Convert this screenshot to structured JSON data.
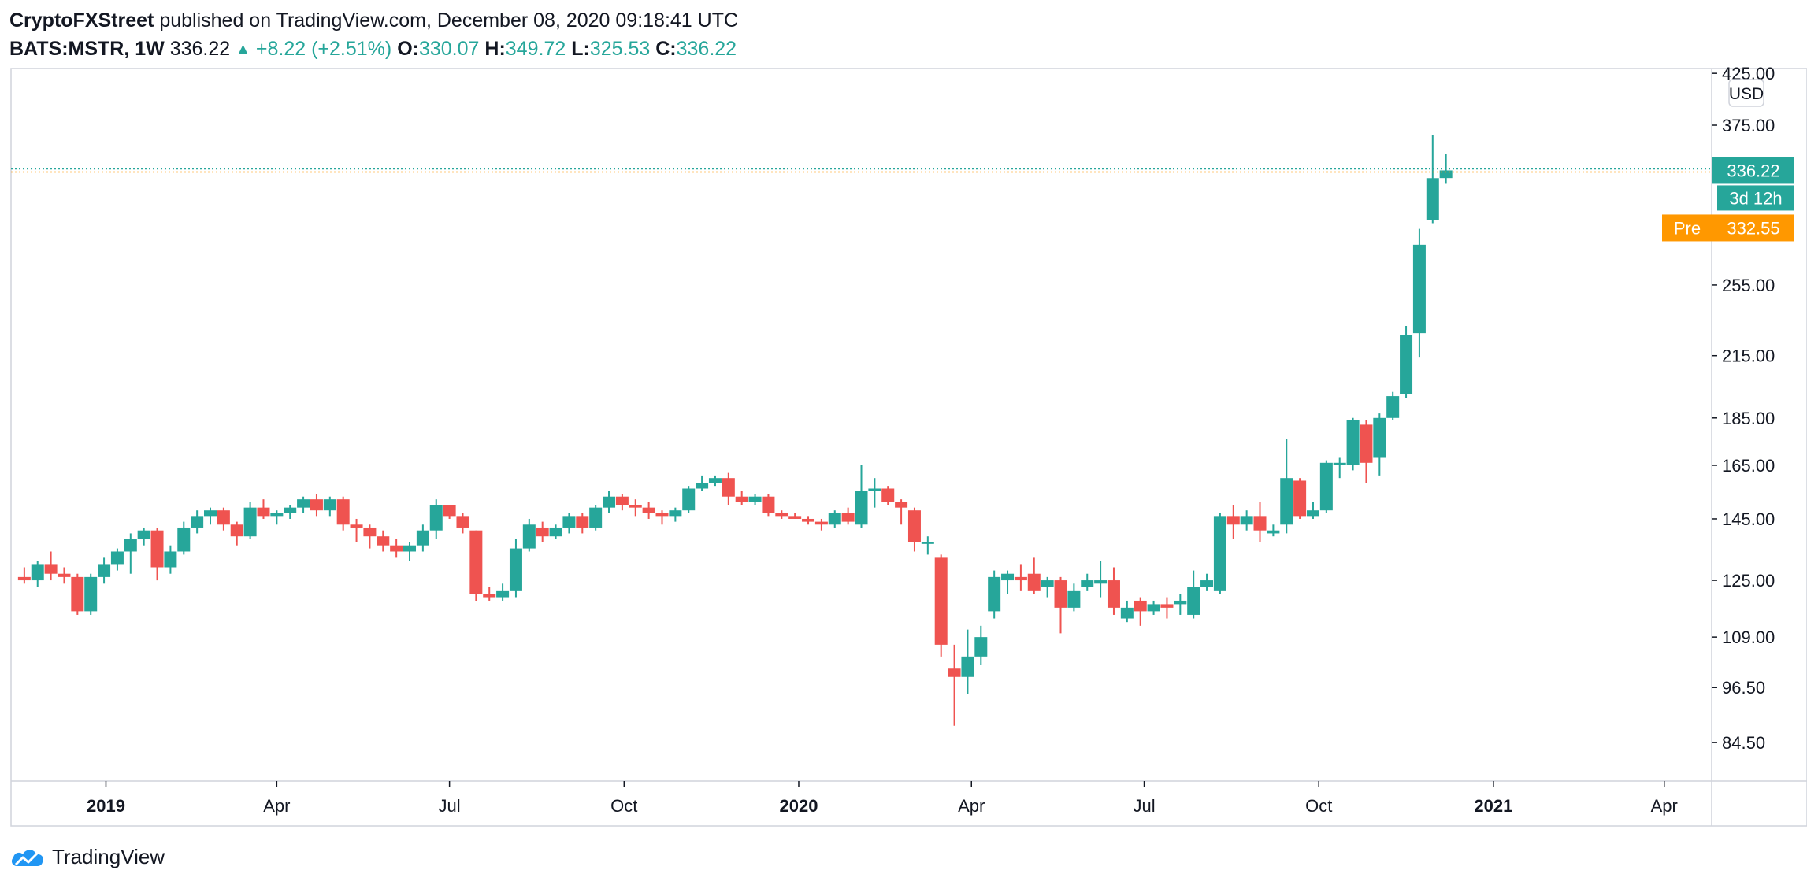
{
  "header": {
    "author": "CryptoFXStreet",
    "published": "published on TradingView.com, December 08, 2020 09:18:41 UTC",
    "symbol": "BATS:MSTR, 1W",
    "last": "336.22",
    "change": "+8.22 (+2.51%)",
    "o_label": "O:",
    "o_value": "330.07",
    "h_label": "H:",
    "h_value": "349.72",
    "l_label": "L:",
    "l_value": "325.53",
    "c_label": "C:",
    "c_value": "336.22"
  },
  "colors": {
    "up": "#26a69a",
    "down": "#ef5350",
    "pre": "#ff9800",
    "grid_border": "#d1d4dc",
    "text": "#131722",
    "brand_blue": "#2196f3"
  },
  "price_axis": {
    "currency": "USD",
    "last_label": "336.22",
    "countdown": "3d 12h",
    "pre_tag": "Pre",
    "pre_label": "332.55"
  },
  "footer": {
    "brand": "TradingView",
    "logo_icon": "tradingview-cloud-icon"
  },
  "chart_data": {
    "type": "candlestick",
    "interval": "1W",
    "scale": "log",
    "grid": false,
    "y_ticks": [
      "425.00",
      "375.00",
      "255.00",
      "215.00",
      "185.00",
      "165.00",
      "145.00",
      "125.00",
      "109.00",
      "96.50",
      "84.50"
    ],
    "x_ticks": [
      {
        "label": "2019",
        "date": "2019-01-01",
        "bold": true
      },
      {
        "label": "Apr",
        "date": "2019-04-01"
      },
      {
        "label": "Jul",
        "date": "2019-07-01"
      },
      {
        "label": "Oct",
        "date": "2019-10-01"
      },
      {
        "label": "2020",
        "date": "2020-01-01",
        "bold": true
      },
      {
        "label": "Apr",
        "date": "2020-04-01"
      },
      {
        "label": "Jul",
        "date": "2020-07-01"
      },
      {
        "label": "Oct",
        "date": "2020-10-01"
      },
      {
        "label": "2021",
        "date": "2021-01-01",
        "bold": true
      },
      {
        "label": "Apr",
        "date": "2021-04-01"
      }
    ],
    "x_range": [
      "2018-11-12",
      "2021-04-26"
    ],
    "y_range": [
      77,
      430
    ],
    "last_price": 336.22,
    "pre_price": 332.55,
    "candles": [
      {
        "date": "2018-11-19",
        "o": 126,
        "h": 129,
        "l": 124,
        "c": 125
      },
      {
        "date": "2018-11-26",
        "o": 125,
        "h": 131,
        "l": 123,
        "c": 130
      },
      {
        "date": "2018-12-03",
        "o": 130,
        "h": 134,
        "l": 125,
        "c": 127
      },
      {
        "date": "2018-12-10",
        "o": 127,
        "h": 129,
        "l": 124,
        "c": 126
      },
      {
        "date": "2018-12-17",
        "o": 126,
        "h": 127,
        "l": 115,
        "c": 116
      },
      {
        "date": "2018-12-24",
        "o": 116,
        "h": 127,
        "l": 115,
        "c": 126
      },
      {
        "date": "2018-12-31",
        "o": 126,
        "h": 132,
        "l": 124,
        "c": 130
      },
      {
        "date": "2019-01-07",
        "o": 130,
        "h": 135,
        "l": 128,
        "c": 134
      },
      {
        "date": "2019-01-14",
        "o": 134,
        "h": 140,
        "l": 127,
        "c": 138
      },
      {
        "date": "2019-01-21",
        "o": 138,
        "h": 142,
        "l": 136,
        "c": 141
      },
      {
        "date": "2019-01-28",
        "o": 141,
        "h": 142,
        "l": 125,
        "c": 129
      },
      {
        "date": "2019-02-04",
        "o": 129,
        "h": 136,
        "l": 127,
        "c": 134
      },
      {
        "date": "2019-02-11",
        "o": 134,
        "h": 144,
        "l": 133,
        "c": 142
      },
      {
        "date": "2019-02-18",
        "o": 142,
        "h": 148,
        "l": 140,
        "c": 146
      },
      {
        "date": "2019-02-25",
        "o": 146,
        "h": 149,
        "l": 143,
        "c": 148
      },
      {
        "date": "2019-03-04",
        "o": 148,
        "h": 149,
        "l": 141,
        "c": 143
      },
      {
        "date": "2019-03-11",
        "o": 143,
        "h": 144,
        "l": 136,
        "c": 139
      },
      {
        "date": "2019-03-18",
        "o": 139,
        "h": 151,
        "l": 138,
        "c": 149
      },
      {
        "date": "2019-03-25",
        "o": 149,
        "h": 152,
        "l": 145,
        "c": 146
      },
      {
        "date": "2019-04-01",
        "o": 146,
        "h": 148,
        "l": 143,
        "c": 147
      },
      {
        "date": "2019-04-08",
        "o": 147,
        "h": 150,
        "l": 145,
        "c": 149
      },
      {
        "date": "2019-04-15",
        "o": 149,
        "h": 153,
        "l": 147,
        "c": 152
      },
      {
        "date": "2019-04-22",
        "o": 152,
        "h": 154,
        "l": 146,
        "c": 148
      },
      {
        "date": "2019-04-29",
        "o": 148,
        "h": 153,
        "l": 146,
        "c": 152
      },
      {
        "date": "2019-05-06",
        "o": 152,
        "h": 153,
        "l": 141,
        "c": 143
      },
      {
        "date": "2019-05-13",
        "o": 143,
        "h": 145,
        "l": 137,
        "c": 142
      },
      {
        "date": "2019-05-20",
        "o": 142,
        "h": 143,
        "l": 135,
        "c": 139
      },
      {
        "date": "2019-05-27",
        "o": 139,
        "h": 141,
        "l": 134,
        "c": 136
      },
      {
        "date": "2019-06-03",
        "o": 136,
        "h": 138,
        "l": 132,
        "c": 134
      },
      {
        "date": "2019-06-10",
        "o": 134,
        "h": 137,
        "l": 131,
        "c": 136
      },
      {
        "date": "2019-06-17",
        "o": 136,
        "h": 143,
        "l": 134,
        "c": 141
      },
      {
        "date": "2019-06-24",
        "o": 141,
        "h": 152,
        "l": 138,
        "c": 150
      },
      {
        "date": "2019-07-01",
        "o": 150,
        "h": 150,
        "l": 145,
        "c": 146
      },
      {
        "date": "2019-07-08",
        "o": 146,
        "h": 147,
        "l": 140,
        "c": 142
      },
      {
        "date": "2019-07-15",
        "o": 141,
        "h": 141,
        "l": 119,
        "c": 121
      },
      {
        "date": "2019-07-22",
        "o": 121,
        "h": 123,
        "l": 119,
        "c": 120
      },
      {
        "date": "2019-07-29",
        "o": 120,
        "h": 124,
        "l": 119,
        "c": 122
      },
      {
        "date": "2019-08-05",
        "o": 122,
        "h": 138,
        "l": 120,
        "c": 135
      },
      {
        "date": "2019-08-12",
        "o": 135,
        "h": 145,
        "l": 134,
        "c": 143
      },
      {
        "date": "2019-08-19",
        "o": 142,
        "h": 144,
        "l": 137,
        "c": 139
      },
      {
        "date": "2019-08-26",
        "o": 139,
        "h": 143,
        "l": 138,
        "c": 142
      },
      {
        "date": "2019-09-02",
        "o": 142,
        "h": 147,
        "l": 140,
        "c": 146
      },
      {
        "date": "2019-09-09",
        "o": 146,
        "h": 147,
        "l": 140,
        "c": 142
      },
      {
        "date": "2019-09-16",
        "o": 142,
        "h": 150,
        "l": 141,
        "c": 149
      },
      {
        "date": "2019-09-23",
        "o": 149,
        "h": 155,
        "l": 147,
        "c": 153
      },
      {
        "date": "2019-09-30",
        "o": 153,
        "h": 154,
        "l": 148,
        "c": 150
      },
      {
        "date": "2019-10-07",
        "o": 150,
        "h": 152,
        "l": 146,
        "c": 149
      },
      {
        "date": "2019-10-14",
        "o": 149,
        "h": 151,
        "l": 145,
        "c": 147
      },
      {
        "date": "2019-10-21",
        "o": 147,
        "h": 148,
        "l": 143,
        "c": 146
      },
      {
        "date": "2019-10-28",
        "o": 146,
        "h": 149,
        "l": 144,
        "c": 148
      },
      {
        "date": "2019-11-04",
        "o": 148,
        "h": 157,
        "l": 147,
        "c": 156
      },
      {
        "date": "2019-11-11",
        "o": 156,
        "h": 161,
        "l": 155,
        "c": 158
      },
      {
        "date": "2019-11-18",
        "o": 158,
        "h": 161,
        "l": 157,
        "c": 160
      },
      {
        "date": "2019-11-25",
        "o": 160,
        "h": 162,
        "l": 150,
        "c": 153
      },
      {
        "date": "2019-12-02",
        "o": 153,
        "h": 155,
        "l": 150,
        "c": 151
      },
      {
        "date": "2019-12-09",
        "o": 151,
        "h": 154,
        "l": 150,
        "c": 153
      },
      {
        "date": "2019-12-16",
        "o": 153,
        "h": 154,
        "l": 146,
        "c": 147
      },
      {
        "date": "2019-12-23",
        "o": 147,
        "h": 148,
        "l": 145,
        "c": 146
      },
      {
        "date": "2019-12-30",
        "o": 146,
        "h": 147,
        "l": 145,
        "c": 145
      },
      {
        "date": "2020-01-06",
        "o": 145,
        "h": 146,
        "l": 143,
        "c": 144
      },
      {
        "date": "2020-01-13",
        "o": 144,
        "h": 145,
        "l": 141,
        "c": 143
      },
      {
        "date": "2020-01-20",
        "o": 143,
        "h": 148,
        "l": 142,
        "c": 147
      },
      {
        "date": "2020-01-27",
        "o": 147,
        "h": 149,
        "l": 143,
        "c": 144
      },
      {
        "date": "2020-02-03",
        "o": 143,
        "h": 165,
        "l": 142,
        "c": 155
      },
      {
        "date": "2020-02-10",
        "o": 155,
        "h": 160,
        "l": 149,
        "c": 156
      },
      {
        "date": "2020-02-17",
        "o": 156,
        "h": 157,
        "l": 150,
        "c": 151
      },
      {
        "date": "2020-02-24",
        "o": 151,
        "h": 152,
        "l": 143,
        "c": 149
      },
      {
        "date": "2020-03-02",
        "o": 148,
        "h": 149,
        "l": 134,
        "c": 137
      },
      {
        "date": "2020-03-09",
        "o": 137,
        "h": 139,
        "l": 133,
        "c": 137
      },
      {
        "date": "2020-03-16",
        "o": 132,
        "h": 133,
        "l": 104,
        "c": 107
      },
      {
        "date": "2020-03-23",
        "o": 101,
        "h": 107,
        "l": 88,
        "c": 99
      },
      {
        "date": "2020-03-30",
        "o": 99,
        "h": 111,
        "l": 95,
        "c": 104
      },
      {
        "date": "2020-04-06",
        "o": 104,
        "h": 112,
        "l": 102,
        "c": 109
      },
      {
        "date": "2020-04-13",
        "o": 116,
        "h": 128,
        "l": 114,
        "c": 126
      },
      {
        "date": "2020-04-20",
        "o": 125,
        "h": 128,
        "l": 121,
        "c": 127
      },
      {
        "date": "2020-04-27",
        "o": 126,
        "h": 130,
        "l": 122,
        "c": 125
      },
      {
        "date": "2020-05-04",
        "o": 127,
        "h": 132,
        "l": 121,
        "c": 122
      },
      {
        "date": "2020-05-11",
        "o": 123,
        "h": 126,
        "l": 120,
        "c": 125
      },
      {
        "date": "2020-05-18",
        "o": 125,
        "h": 126,
        "l": 110,
        "c": 117
      },
      {
        "date": "2020-05-25",
        "o": 117,
        "h": 124,
        "l": 116,
        "c": 122
      },
      {
        "date": "2020-06-01",
        "o": 123,
        "h": 127,
        "l": 122,
        "c": 125
      },
      {
        "date": "2020-06-08",
        "o": 124,
        "h": 131,
        "l": 120,
        "c": 125
      },
      {
        "date": "2020-06-15",
        "o": 125,
        "h": 129,
        "l": 115,
        "c": 117
      },
      {
        "date": "2020-06-22",
        "o": 114,
        "h": 119,
        "l": 113,
        "c": 117
      },
      {
        "date": "2020-06-29",
        "o": 119,
        "h": 120,
        "l": 112,
        "c": 116
      },
      {
        "date": "2020-07-06",
        "o": 116,
        "h": 119,
        "l": 115,
        "c": 118
      },
      {
        "date": "2020-07-13",
        "o": 118,
        "h": 120,
        "l": 114,
        "c": 117
      },
      {
        "date": "2020-07-20",
        "o": 118,
        "h": 121,
        "l": 115,
        "c": 119
      },
      {
        "date": "2020-07-27",
        "o": 115,
        "h": 128,
        "l": 114,
        "c": 123
      },
      {
        "date": "2020-08-03",
        "o": 123,
        "h": 127,
        "l": 122,
        "c": 125
      },
      {
        "date": "2020-08-10",
        "o": 122,
        "h": 147,
        "l": 121,
        "c": 146
      },
      {
        "date": "2020-08-17",
        "o": 146,
        "h": 150,
        "l": 138,
        "c": 143
      },
      {
        "date": "2020-08-24",
        "o": 143,
        "h": 148,
        "l": 141,
        "c": 146
      },
      {
        "date": "2020-08-31",
        "o": 146,
        "h": 151,
        "l": 137,
        "c": 141
      },
      {
        "date": "2020-09-07",
        "o": 140,
        "h": 143,
        "l": 139,
        "c": 141
      },
      {
        "date": "2020-09-14",
        "o": 143,
        "h": 176,
        "l": 140,
        "c": 160
      },
      {
        "date": "2020-09-21",
        "o": 159,
        "h": 160,
        "l": 145,
        "c": 146
      },
      {
        "date": "2020-09-28",
        "o": 146,
        "h": 151,
        "l": 145,
        "c": 148
      },
      {
        "date": "2020-10-05",
        "o": 148,
        "h": 167,
        "l": 147,
        "c": 166
      },
      {
        "date": "2020-10-12",
        "o": 165,
        "h": 168,
        "l": 160,
        "c": 166
      },
      {
        "date": "2020-10-19",
        "o": 165,
        "h": 185,
        "l": 163,
        "c": 184
      },
      {
        "date": "2020-10-26",
        "o": 182,
        "h": 184,
        "l": 158,
        "c": 166
      },
      {
        "date": "2020-11-02",
        "o": 168,
        "h": 187,
        "l": 161,
        "c": 185
      },
      {
        "date": "2020-11-09",
        "o": 185,
        "h": 197,
        "l": 184,
        "c": 195
      },
      {
        "date": "2020-11-16",
        "o": 196,
        "h": 231,
        "l": 194,
        "c": 226
      },
      {
        "date": "2020-11-23",
        "o": 227,
        "h": 292,
        "l": 214,
        "c": 281
      },
      {
        "date": "2020-11-30",
        "o": 298,
        "h": 366,
        "l": 296,
        "c": 330
      },
      {
        "date": "2020-12-07",
        "o": 330.07,
        "h": 349.72,
        "l": 325.53,
        "c": 336.22
      }
    ]
  }
}
